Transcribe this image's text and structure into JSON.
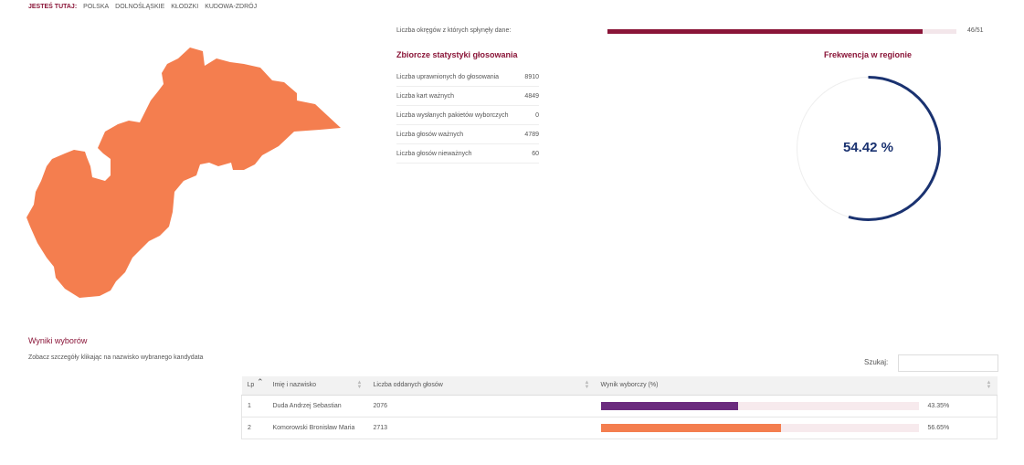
{
  "breadcrumb": {
    "here_label": "JESTEŚ TUTAJ:",
    "items": [
      "POLSKA",
      "DOLNOŚLĄSKIE",
      "KŁODZKI",
      "KUDOWA-ZDRÓJ"
    ]
  },
  "map": {
    "fill_color": "#f47e4f"
  },
  "progress": {
    "label": "Liczba okręgów z których spłynęły dane:",
    "count": "46/51",
    "fraction": 0.902,
    "color": "#8a1538"
  },
  "stats": {
    "title": "Zbiorcze statystyki głosowania",
    "rows": [
      {
        "label": "Liczba uprawnionych do głosowania",
        "value": "8910"
      },
      {
        "label": "Liczba kart ważnych",
        "value": "4849"
      },
      {
        "label": "Liczba wysłanych pakietów wyborczych",
        "value": "0"
      },
      {
        "label": "Liczba głosów ważnych",
        "value": "4789"
      },
      {
        "label": "Liczba głosów nieważnych",
        "value": "60"
      }
    ]
  },
  "turnout": {
    "title": "Frekwencja w regionie",
    "value_text": "54.42 %",
    "fraction": 0.5442,
    "color": "#1a3270"
  },
  "results": {
    "title": "Wyniki wyborów",
    "hint": "Zobacz szczegóły klikając na nazwisko wybranego kandydata",
    "search_label": "Szukaj:",
    "columns": [
      "Lp",
      "Imię i nazwisko",
      "Liczba oddanych głosów",
      "Wynik wyborczy (%)"
    ],
    "rows": [
      {
        "lp": "1",
        "name": "Duda Andrzej Sebastian",
        "votes": "2076",
        "pct_text": "43.35%",
        "pct": 0.4335,
        "color": "#6b2c7e"
      },
      {
        "lp": "2",
        "name": "Komorowski Bronisław Maria",
        "votes": "2713",
        "pct_text": "56.65%",
        "pct": 0.5665,
        "color": "#f47e4f"
      }
    ]
  }
}
